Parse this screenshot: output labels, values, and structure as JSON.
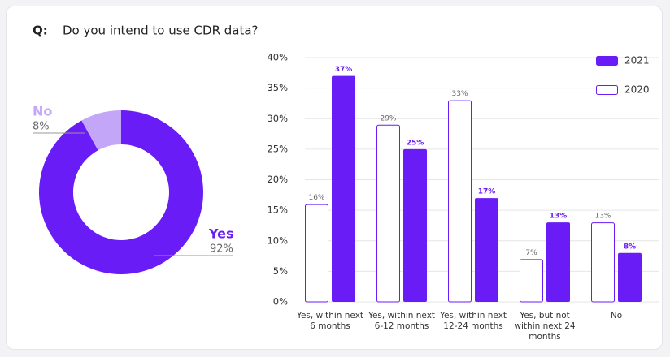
{
  "question_label": "Q:",
  "title": "Do you intend to use CDR data?",
  "chart_data": [
    {
      "type": "donut",
      "categories": [
        "Yes",
        "No"
      ],
      "values": [
        92,
        8
      ],
      "value_labels": [
        "92%",
        "8%"
      ],
      "colors": [
        "#6a1cf6",
        "#c3a6f8"
      ]
    },
    {
      "type": "grouped-bar",
      "categories": [
        "Yes, within next 6 months",
        "Yes, within next 6-12 months",
        "Yes, within next 12-24 months",
        "Yes, but not within next 24 months",
        "No"
      ],
      "series": [
        {
          "name": "2021",
          "color": "#6a1cf6",
          "fill": "#6a1cf6",
          "values": [
            37,
            25,
            17,
            13,
            8
          ],
          "value_labels": [
            "37%",
            "25%",
            "17%",
            "13%",
            "8%"
          ]
        },
        {
          "name": "2020",
          "color": "#6a1cf6",
          "fill": "#ffffff",
          "values": [
            16,
            29,
            33,
            7,
            13
          ],
          "value_labels": [
            "16%",
            "29%",
            "33%",
            "7%",
            "13%"
          ]
        }
      ],
      "ylim": [
        0,
        40
      ],
      "yticks": [
        {
          "value": 0,
          "label": "0%"
        },
        {
          "value": 5,
          "label": "5%"
        },
        {
          "value": 10,
          "label": "10%"
        },
        {
          "value": 15,
          "label": "15%"
        },
        {
          "value": 20,
          "label": "20%"
        },
        {
          "value": 25,
          "label": "25%"
        },
        {
          "value": 30,
          "label": "30%"
        },
        {
          "value": 35,
          "label": "35%"
        },
        {
          "value": 40,
          "label": "40%"
        }
      ],
      "grid": true,
      "legend": "top-right"
    }
  ]
}
